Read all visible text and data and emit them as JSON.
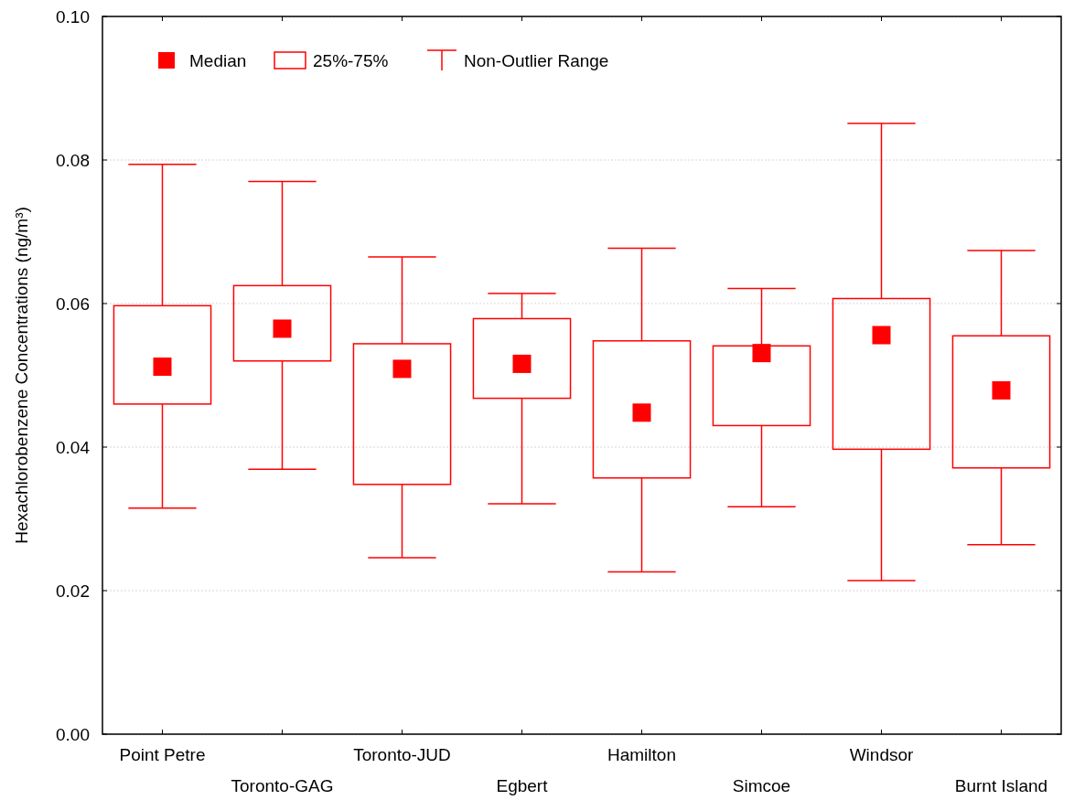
{
  "chart_data": {
    "type": "box",
    "categories": [
      "Point Petre",
      "Toronto-GAG",
      "Toronto-JUD",
      "Egbert",
      "Hamilton",
      "Simcoe",
      "Windsor",
      "Burnt Island"
    ],
    "boxes": [
      {
        "low": 0.0315,
        "q1": 0.046,
        "median": 0.0512,
        "q3": 0.0597,
        "high": 0.0794
      },
      {
        "low": 0.0369,
        "q1": 0.052,
        "median": 0.0565,
        "q3": 0.0625,
        "high": 0.077
      },
      {
        "low": 0.0246,
        "q1": 0.0348,
        "median": 0.0509,
        "q3": 0.0544,
        "high": 0.0665
      },
      {
        "low": 0.0321,
        "q1": 0.0468,
        "median": 0.0516,
        "q3": 0.0579,
        "high": 0.0614
      },
      {
        "low": 0.0226,
        "q1": 0.0357,
        "median": 0.0448,
        "q3": 0.0548,
        "high": 0.0677
      },
      {
        "low": 0.0317,
        "q1": 0.043,
        "median": 0.0531,
        "q3": 0.0541,
        "high": 0.0621
      },
      {
        "low": 0.0214,
        "q1": 0.0397,
        "median": 0.0556,
        "q3": 0.0607,
        "high": 0.0851
      },
      {
        "low": 0.0264,
        "q1": 0.0371,
        "median": 0.0479,
        "q3": 0.0555,
        "high": 0.0674
      }
    ],
    "color": "#ff0000",
    "ylabel": "Hexachlorobenzene Concentrations (ng/m³)",
    "ylim": [
      0,
      0.1
    ],
    "yticks": [
      {
        "value": 0,
        "label": "0.00"
      },
      {
        "value": 0.02,
        "label": "0.02"
      },
      {
        "value": 0.04,
        "label": "0.04"
      },
      {
        "value": 0.06,
        "label": "0.06"
      },
      {
        "value": 0.08,
        "label": "0.08"
      },
      {
        "value": 0.1,
        "label": "0.10"
      }
    ],
    "grid": "y",
    "annotations": [
      "Median",
      "25%-75%",
      "Non-Outlier Range"
    ]
  }
}
